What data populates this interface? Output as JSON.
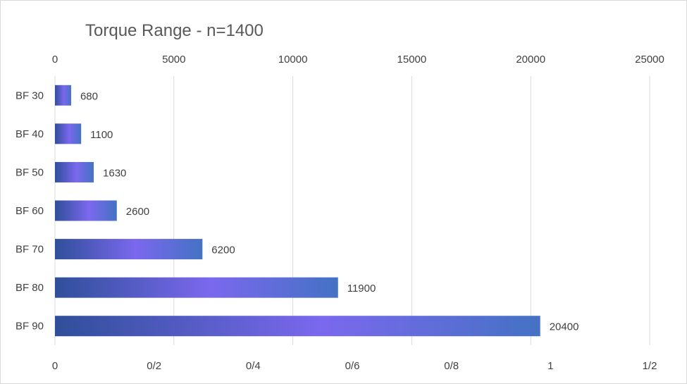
{
  "chart_data": {
    "type": "bar",
    "orientation": "horizontal",
    "title": "Torque Range - n=1400",
    "categories": [
      "BF 30",
      "BF 40",
      "BF 50",
      "BF 60",
      "BF 70",
      "BF 80",
      "BF 90"
    ],
    "values": [
      680,
      1100,
      1630,
      2600,
      6200,
      11900,
      20400
    ],
    "data_labels": [
      "680",
      "1100",
      "1630",
      "2600",
      "6200",
      "11900",
      "20400"
    ],
    "xlim": [
      0,
      25000
    ],
    "top_axis_ticks": [
      "0",
      "5000",
      "10000",
      "15000",
      "20000",
      "25000"
    ],
    "bottom_axis_ticks": [
      "0",
      "0/2",
      "0/4",
      "0/6",
      "0/8",
      "1",
      "1/2"
    ],
    "grid": "vertical",
    "legend": "none",
    "colors": {
      "bar_dark": "#2f4f9a",
      "bar_mid": "#7b68ee",
      "bar_light": "#4472c4",
      "grid": "#d9d9d9",
      "text": "#404040"
    }
  }
}
